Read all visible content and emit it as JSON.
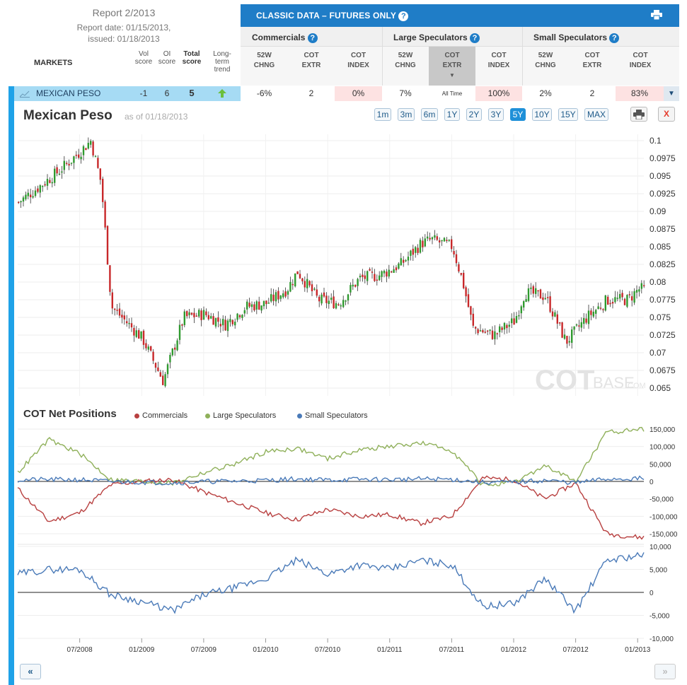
{
  "report": {
    "title": "Report 2/2013",
    "report_date": "Report date: 01/15/2013,",
    "issued": "issued: 01/18/2013"
  },
  "columns_left": {
    "markets": "MARKETS",
    "vol": [
      "Vol",
      "score"
    ],
    "oi": [
      "OI",
      "score"
    ],
    "total": [
      "Total",
      "score"
    ],
    "trend": [
      "Long-",
      "term",
      "trend"
    ]
  },
  "banner": {
    "title": "CLASSIC DATA – FUTURES ONLY",
    "help": "?",
    "print_icon": "print-icon"
  },
  "groups": [
    {
      "label": "Commercials",
      "help": "?"
    },
    {
      "label": "Large Speculators",
      "help": "?"
    },
    {
      "label": "Small Speculators",
      "help": "?"
    }
  ],
  "subcols": [
    [
      "52W",
      "CHNG"
    ],
    [
      "COT",
      "EXTR"
    ],
    [
      "COT",
      "INDEX"
    ],
    [
      "52W",
      "CHNG"
    ],
    [
      "COT",
      "EXTR"
    ],
    [
      "COT",
      "INDEX"
    ],
    [
      "52W",
      "CHNG"
    ],
    [
      "COT",
      "EXTR"
    ],
    [
      "COT",
      "INDEX"
    ]
  ],
  "market": {
    "name": "MEXICAN PESO",
    "vol": "-1",
    "oi": "6",
    "total": "5",
    "trend_icon": "up-arrow-icon",
    "cells": [
      "-6%",
      "2",
      "0%",
      "7%",
      "All Time",
      "100%",
      "2%",
      "2",
      "83%"
    ],
    "expand_icon": "caret-down-icon"
  },
  "price_chart": {
    "title": "Mexican Peso",
    "as_of": "as of 01/18/2013",
    "zoom": [
      "1m",
      "3m",
      "6m",
      "1Y",
      "2Y",
      "3Y",
      "5Y",
      "10Y",
      "15Y",
      "MAX"
    ],
    "active_zoom": "5Y",
    "watermark_a": "COT",
    "watermark_b": "BASE",
    "watermark_c": ".COM",
    "close_label": "X"
  },
  "cot_section": {
    "title": "COT Net Positions",
    "legend": [
      {
        "label": "Commercials",
        "color": "#b84040"
      },
      {
        "label": "Large Speculators",
        "color": "#8fb05a"
      },
      {
        "label": "Small Speculators",
        "color": "#4a7ab8"
      }
    ]
  },
  "nav": {
    "prev": "«",
    "next": "»"
  },
  "chart_data": [
    {
      "type": "candlestick",
      "title": "Mexican Peso",
      "y_ticks": [
        "0.1",
        "0.0975",
        "0.095",
        "0.0925",
        "0.09",
        "0.0875",
        "0.085",
        "0.0825",
        "0.08",
        "0.0775",
        "0.075",
        "0.0725",
        "0.07",
        "0.0675",
        "0.065"
      ],
      "ylim": [
        0.065,
        0.1
      ],
      "x_ticks": [
        "07/2008",
        "01/2009",
        "07/2009",
        "01/2010",
        "07/2010",
        "01/2011",
        "07/2011",
        "01/2012",
        "07/2012",
        "01/2013"
      ],
      "series": [
        {
          "x": "2008-01",
          "close": 0.0913
        },
        {
          "x": "2008-03",
          "close": 0.0935
        },
        {
          "x": "2008-05",
          "close": 0.0958
        },
        {
          "x": "2008-07",
          "close": 0.0985
        },
        {
          "x": "2008-08",
          "close": 0.1
        },
        {
          "x": "2008-09",
          "close": 0.094
        },
        {
          "x": "2008-10",
          "close": 0.0765
        },
        {
          "x": "2008-11",
          "close": 0.075
        },
        {
          "x": "2008-12",
          "close": 0.0735
        },
        {
          "x": "2009-01",
          "close": 0.072
        },
        {
          "x": "2009-03",
          "close": 0.066
        },
        {
          "x": "2009-05",
          "close": 0.075
        },
        {
          "x": "2009-07",
          "close": 0.0755
        },
        {
          "x": "2009-09",
          "close": 0.074
        },
        {
          "x": "2009-11",
          "close": 0.0765
        },
        {
          "x": "2010-01",
          "close": 0.077
        },
        {
          "x": "2010-03",
          "close": 0.079
        },
        {
          "x": "2010-04",
          "close": 0.0815
        },
        {
          "x": "2010-06",
          "close": 0.0775
        },
        {
          "x": "2010-08",
          "close": 0.077
        },
        {
          "x": "2010-10",
          "close": 0.0805
        },
        {
          "x": "2010-12",
          "close": 0.081
        },
        {
          "x": "2011-02",
          "close": 0.0825
        },
        {
          "x": "2011-04",
          "close": 0.0855
        },
        {
          "x": "2011-05",
          "close": 0.086
        },
        {
          "x": "2011-07",
          "close": 0.085
        },
        {
          "x": "2011-08",
          "close": 0.08
        },
        {
          "x": "2011-09",
          "close": 0.0735
        },
        {
          "x": "2011-11",
          "close": 0.0725
        },
        {
          "x": "2012-01",
          "close": 0.0745
        },
        {
          "x": "2012-02",
          "close": 0.0785
        },
        {
          "x": "2012-04",
          "close": 0.078
        },
        {
          "x": "2012-06",
          "close": 0.0715
        },
        {
          "x": "2012-08",
          "close": 0.075
        },
        {
          "x": "2012-10",
          "close": 0.0775
        },
        {
          "x": "2012-12",
          "close": 0.0775
        },
        {
          "x": "2013-01",
          "close": 0.079
        }
      ]
    },
    {
      "type": "line",
      "title": "COT Net Positions",
      "y_ticks": [
        "150,000",
        "100,000",
        "50,000",
        "0",
        "-50,000",
        "-100,000",
        "-150,000"
      ],
      "ylim": [
        -150000,
        150000
      ],
      "series": [
        {
          "name": "Commercials",
          "color": "#b84040",
          "x": [
            "2008-01",
            "2008-04",
            "2008-07",
            "2008-10",
            "2009-01",
            "2009-04",
            "2009-07",
            "2009-10",
            "2010-01",
            "2010-04",
            "2010-07",
            "2010-10",
            "2011-01",
            "2011-04",
            "2011-07",
            "2011-10",
            "2012-01",
            "2012-04",
            "2012-07",
            "2012-10",
            "2013-01"
          ],
          "values": [
            -20000,
            -115000,
            -90000,
            -10000,
            0,
            5000,
            -30000,
            -60000,
            -90000,
            -110000,
            -80000,
            -100000,
            -95000,
            -120000,
            -100000,
            10000,
            5000,
            -50000,
            -5000,
            -150000,
            -160000
          ]
        },
        {
          "name": "Large Speculators",
          "color": "#8fb05a",
          "x": [
            "2008-01",
            "2008-04",
            "2008-07",
            "2008-10",
            "2009-01",
            "2009-04",
            "2009-07",
            "2009-10",
            "2010-01",
            "2010-04",
            "2010-07",
            "2010-10",
            "2011-01",
            "2011-04",
            "2011-07",
            "2011-10",
            "2012-01",
            "2012-04",
            "2012-07",
            "2012-10",
            "2013-01"
          ],
          "values": [
            25000,
            120000,
            80000,
            5000,
            0,
            -5000,
            25000,
            50000,
            85000,
            95000,
            65000,
            90000,
            100000,
            110000,
            90000,
            -10000,
            -5000,
            45000,
            0,
            140000,
            150000
          ]
        },
        {
          "name": "Small Speculators",
          "color": "#4a7ab8",
          "x": [
            "2008-01",
            "2008-04",
            "2008-07",
            "2008-10",
            "2009-01",
            "2009-04",
            "2009-07",
            "2009-10",
            "2010-01",
            "2010-04",
            "2010-07",
            "2010-10",
            "2011-01",
            "2011-04",
            "2011-07",
            "2011-10",
            "2012-01",
            "2012-04",
            "2012-07",
            "2012-10",
            "2013-01"
          ],
          "values": [
            4000,
            5000,
            5000,
            -500,
            -2000,
            -4000,
            -500,
            1000,
            3000,
            7000,
            4000,
            6000,
            5000,
            7000,
            6000,
            -3000,
            -2500,
            3000,
            -4000,
            7000,
            8000
          ]
        }
      ]
    },
    {
      "type": "line",
      "title": "",
      "y_ticks": [
        "10,000",
        "5,000",
        "0",
        "-5,000",
        "-10,000"
      ],
      "ylim": [
        -10000,
        10000
      ],
      "series": [
        {
          "name": "Small Speculators",
          "color": "#4a7ab8",
          "x": [
            "2008-01",
            "2008-04",
            "2008-07",
            "2008-10",
            "2009-01",
            "2009-04",
            "2009-07",
            "2009-10",
            "2010-01",
            "2010-04",
            "2010-07",
            "2010-10",
            "2011-01",
            "2011-04",
            "2011-07",
            "2011-10",
            "2012-01",
            "2012-04",
            "2012-07",
            "2012-10",
            "2013-01"
          ],
          "values": [
            4000,
            5000,
            5000,
            -500,
            -2000,
            -4000,
            -500,
            1000,
            3000,
            7000,
            4000,
            6000,
            5000,
            7000,
            6000,
            -3000,
            -2500,
            3000,
            -4000,
            7000,
            8000
          ]
        }
      ]
    }
  ]
}
